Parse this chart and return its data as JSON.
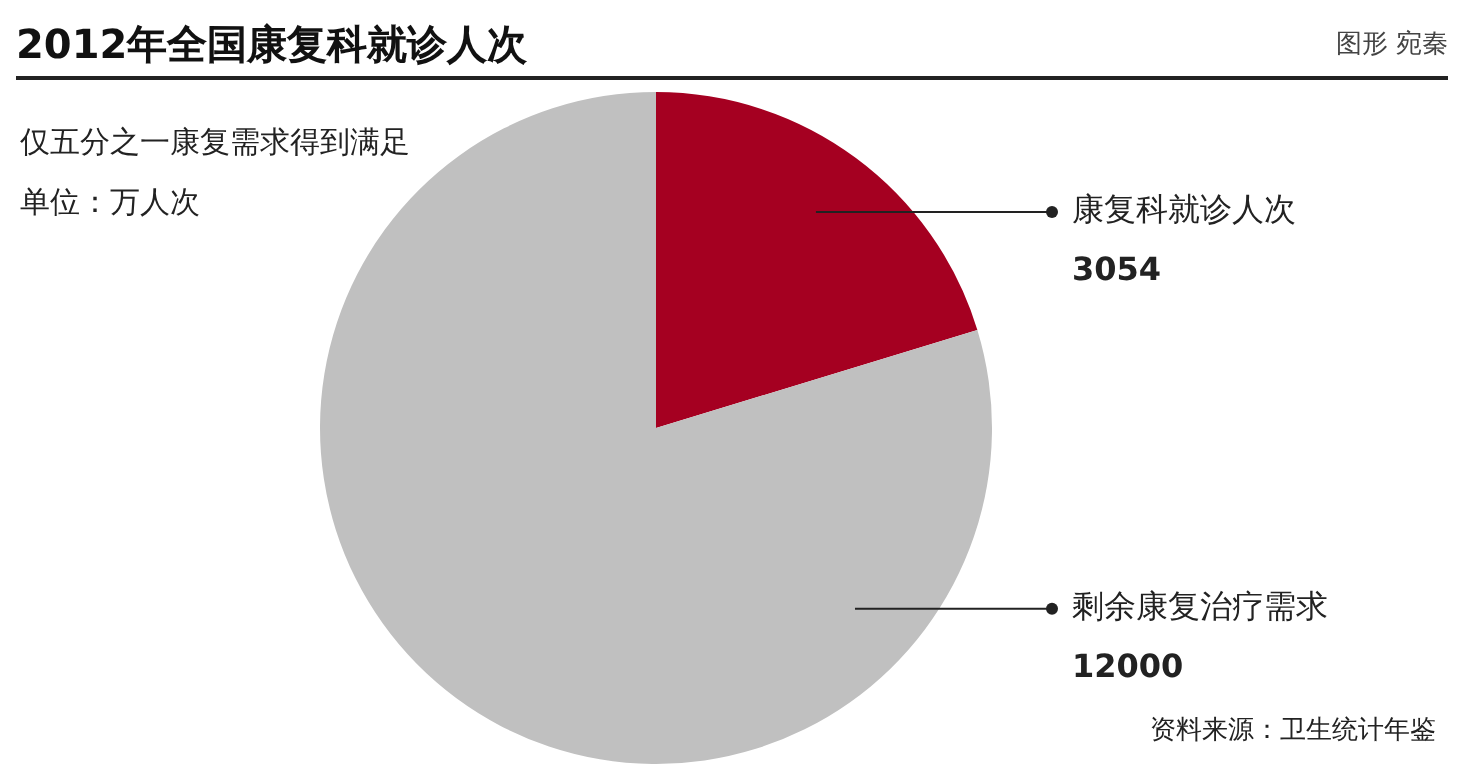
{
  "chart_data": {
    "type": "pie",
    "title": "2012年全国康复科就诊人次",
    "subtitle": "仅五分之一康复需求得到满足",
    "annotations": [
      "图形 宛秦",
      "单位：万人次",
      "资料来源：卫生统计年鉴"
    ],
    "categories": [
      "康复科就诊人次",
      "剩余康复治疗需求"
    ],
    "values": [
      3054,
      12000
    ],
    "colors": [
      "#a50021",
      "#c0c0c0"
    ],
    "data_labels": true,
    "legend": false
  }
}
